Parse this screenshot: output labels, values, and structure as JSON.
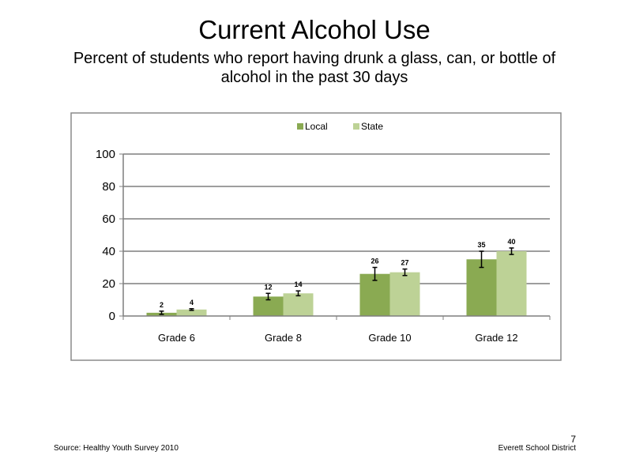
{
  "slide": {
    "title": "Current Alcohol Use",
    "subtitle": "Percent of students who report having drunk  a glass, can, or bottle of alcohol in the past 30 days",
    "source": "Source: Healthy Youth Survey 2010",
    "organization": "Everett School District",
    "page_number": "7"
  },
  "chart_data": {
    "type": "bar",
    "title": "",
    "xlabel": "",
    "ylabel": "",
    "categories": [
      "Grade 6",
      "Grade 8",
      "Grade 10",
      "Grade 12"
    ],
    "series": [
      {
        "name": "Local",
        "color": "#8aaa52",
        "values": [
          2,
          12,
          26,
          35
        ],
        "error_low": [
          1,
          2,
          4,
          5
        ],
        "error_high": [
          1,
          2,
          4,
          5
        ]
      },
      {
        "name": "State",
        "color": "#bdd296",
        "values": [
          4,
          14,
          27,
          40
        ],
        "error_low": [
          0.5,
          1.5,
          2,
          2
        ],
        "error_high": [
          0.5,
          1.5,
          2,
          2
        ]
      }
    ],
    "ylim": [
      0,
      100
    ],
    "yticks": [
      0,
      20,
      40,
      60,
      80,
      100
    ],
    "grid": true,
    "legend_position": "top-center",
    "data_labels": true
  }
}
